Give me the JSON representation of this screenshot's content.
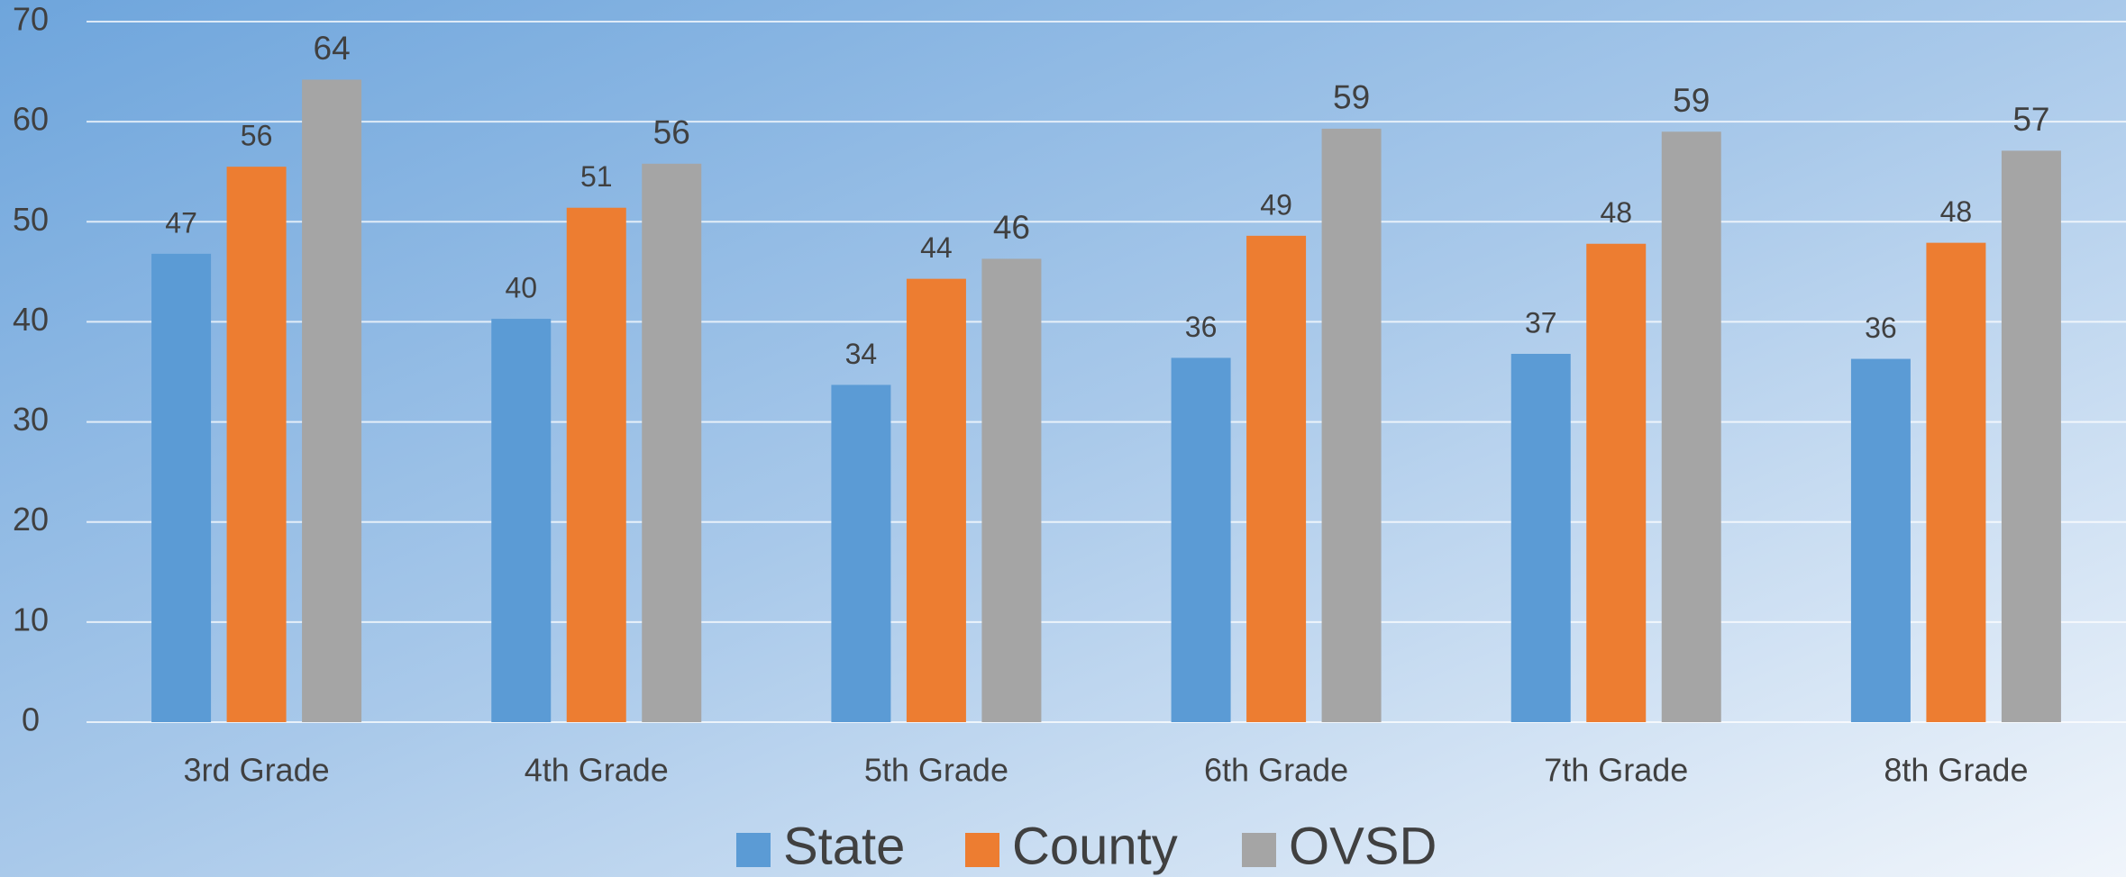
{
  "chart_data": {
    "type": "bar",
    "categories": [
      "3rd Grade",
      "4th Grade",
      "5th Grade",
      "6th Grade",
      "7th Grade",
      "8th Grade"
    ],
    "series": [
      {
        "name": "State",
        "color": "#5b9bd5",
        "values": [
          46.8,
          40.3,
          33.7,
          36.4,
          36.8,
          36.3
        ],
        "value_labels": [
          "47",
          "40",
          "34",
          "36",
          "37",
          "36"
        ]
      },
      {
        "name": "County",
        "color": "#ed7d31",
        "values": [
          55.5,
          51.4,
          44.3,
          48.6,
          47.8,
          47.9
        ],
        "value_labels": [
          "56",
          "51",
          "44",
          "49",
          "48",
          "48"
        ]
      },
      {
        "name": "OVSD",
        "color": "#a5a5a5",
        "values": [
          64.2,
          55.8,
          46.3,
          59.3,
          59.0,
          57.1
        ],
        "value_labels": [
          "64",
          "56",
          "46",
          "59",
          "59",
          "57"
        ]
      }
    ],
    "ylim": [
      0,
      70
    ],
    "yticks": [
      0,
      10,
      20,
      30,
      40,
      50,
      60,
      70
    ],
    "grid": true,
    "legend": "bottom"
  }
}
